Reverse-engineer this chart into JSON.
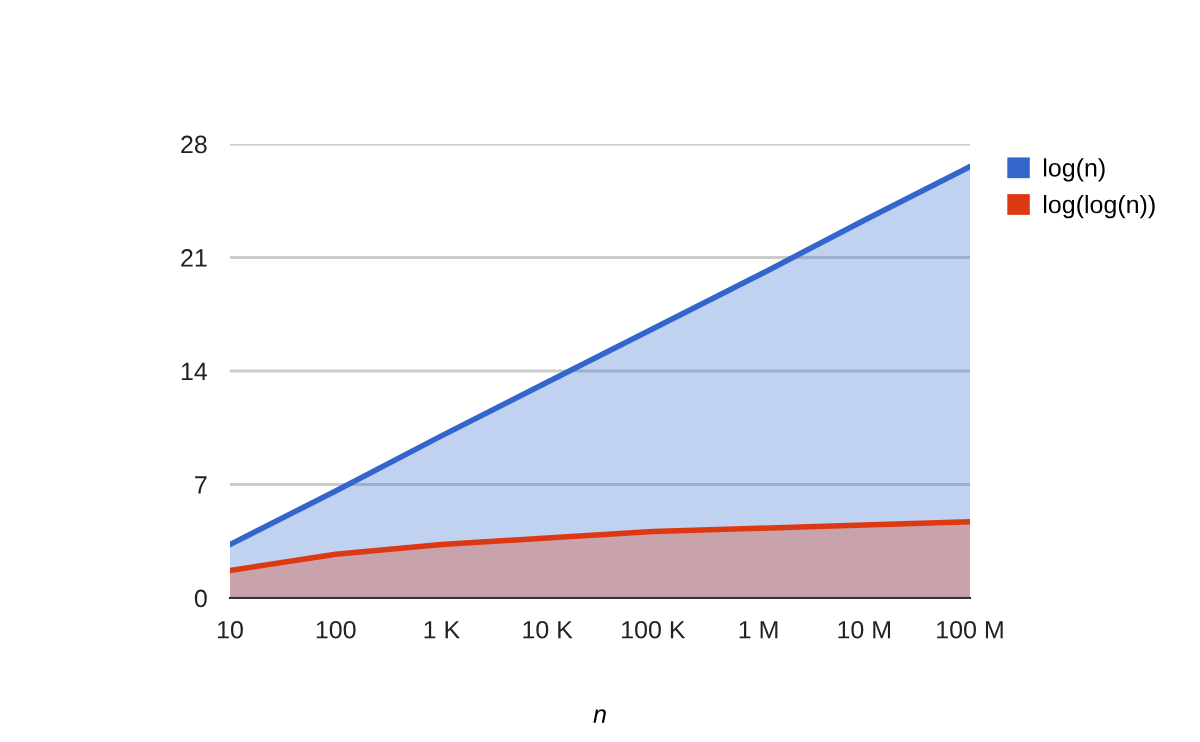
{
  "chart_data": {
    "type": "area",
    "xlabel": "n",
    "categories": [
      "10",
      "100",
      "1 K",
      "10 K",
      "100 K",
      "1 M",
      "10 M",
      "100 M"
    ],
    "series": [
      {
        "name": "log(n)",
        "color": "#3366cc",
        "values": [
          3.3,
          6.6,
          10.0,
          13.3,
          16.6,
          19.9,
          23.3,
          26.6
        ]
      },
      {
        "name": "log(log(n))",
        "color": "#dc3912",
        "values": [
          1.7,
          2.7,
          3.3,
          3.7,
          4.1,
          4.3,
          4.5,
          4.7
        ]
      }
    ],
    "ylim": [
      0,
      28
    ],
    "yticks": [
      0,
      7,
      14,
      21,
      28
    ],
    "grid": "y",
    "legend": "top right"
  }
}
